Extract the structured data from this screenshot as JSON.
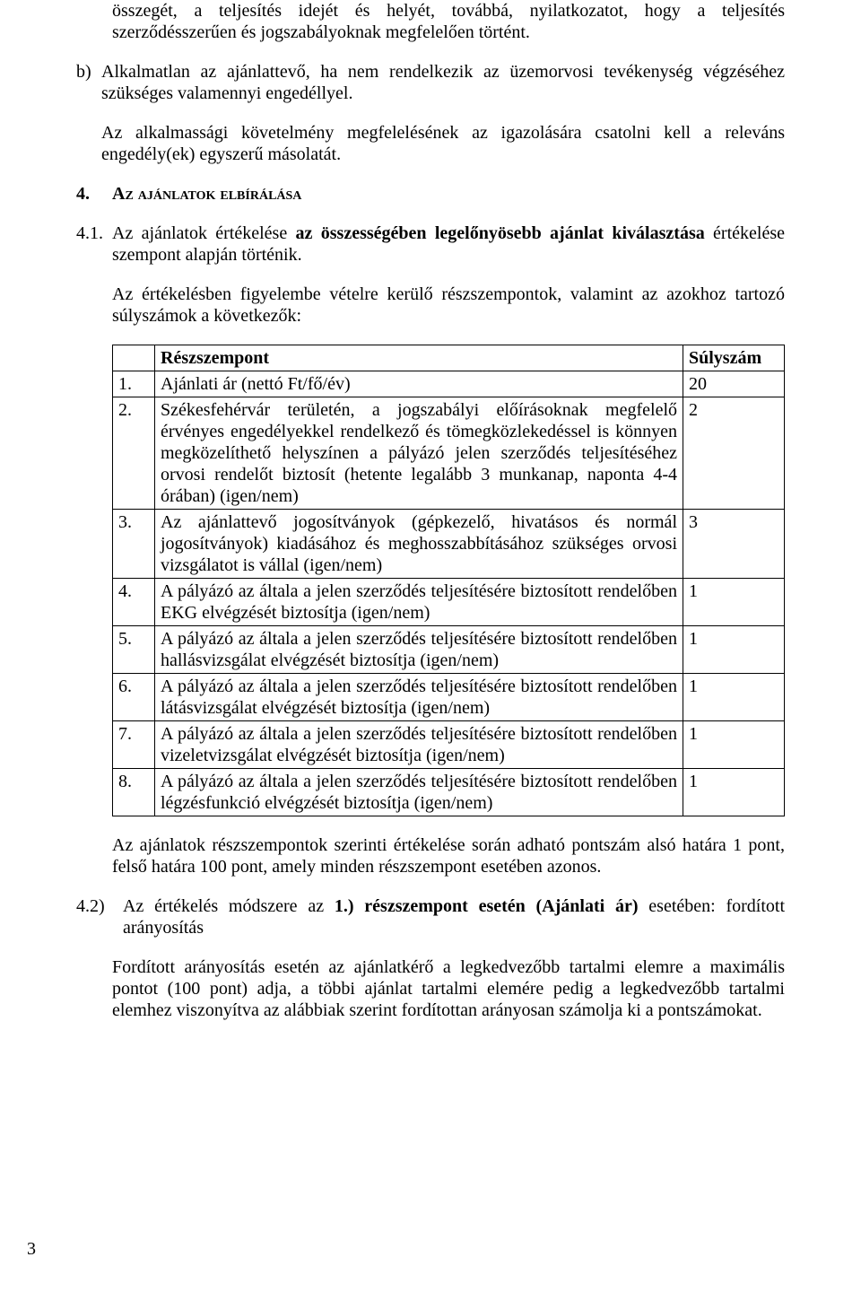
{
  "para_top": "összegét, a teljesítés idejét és helyét, továbbá, nyilatkozatot, hogy a teljesítés szerződésszerűen és jogszabályoknak megfelelően történt.",
  "item_b_marker": "b)",
  "item_b_text1": "Alkalmatlan az ajánlattevő, ha nem rendelkezik az üzemorvosi tevékenység végzéséhez szükséges valamennyi engedéllyel.",
  "item_b_text2": "Az alkalmassági követelmény megfelelésének az igazolására csatolni kell a releváns engedély(ek) egyszerű másolatát.",
  "section4_num": "4.",
  "section4_title": "Az ajánlatok elbírálása",
  "sec41_num": "4.1.",
  "sec41_pre": "Az ajánlatok értékelése ",
  "sec41_bold": "az összességében legelőnyösebb ajánlat kiválasztása",
  "sec41_post": " értékelése szempont alapján történik.",
  "sec41_para2": "Az értékelésben figyelembe vételre kerülő részszempontok, valamint az azokhoz tartozó súlyszámok a következők:",
  "table": {
    "header_criterion": "Részszempont",
    "header_weight": "Súlyszám",
    "rows": [
      {
        "n": "1.",
        "desc": "Ajánlati ár (nettó Ft/fő/év)",
        "w": "20"
      },
      {
        "n": "2.",
        "desc": "Székesfehérvár területén, a jogszabályi előírásoknak megfelelő érvényes engedélyekkel rendelkező és tömegközlekedéssel is könnyen megközelíthető helyszínen a pályázó jelen szerződés teljesítéséhez orvosi rendelőt biztosít (hetente legalább 3 munkanap, naponta 4-4 órában) (igen/nem)",
        "w": "2"
      },
      {
        "n": "3.",
        "desc": "Az ajánlattevő jogosítványok (gépkezelő, hivatásos és normál jogosítványok) kiadásához és meghosszabbításához szükséges orvosi vizsgálatot is vállal (igen/nem)",
        "w": "3"
      },
      {
        "n": "4.",
        "desc": "A pályázó az általa a jelen szerződés teljesítésére biztosított rendelőben EKG elvégzését biztosítja (igen/nem)",
        "w": "1"
      },
      {
        "n": "5.",
        "desc": "A pályázó az általa a jelen szerződés teljesítésére biztosított rendelőben hallásvizsgálat elvégzését biztosítja (igen/nem)",
        "w": "1"
      },
      {
        "n": "6.",
        "desc": "A pályázó az általa a jelen szerződés teljesítésére biztosított rendelőben látásvizsgálat elvégzését biztosítja (igen/nem)",
        "w": "1"
      },
      {
        "n": "7.",
        "desc": "A pályázó az általa a jelen szerződés teljesítésére biztosított rendelőben vizeletvizsgálat elvégzését biztosítja (igen/nem)",
        "w": "1"
      },
      {
        "n": "8.",
        "desc": "A pályázó az általa a jelen szerződés teljesítésére biztosított rendelőben légzésfunkció elvégzését biztosítja (igen/nem)",
        "w": "1"
      }
    ]
  },
  "after_table_para": "Az ajánlatok részszempontok szerinti értékelése során adható pontszám alsó határa 1 pont, felső határa 100 pont, amely minden részszempont esetében azonos.",
  "sec42_num": "4.2)",
  "sec42_pre": "Az értékelés módszere az ",
  "sec42_bold": "1.) részszempont esetén (Ajánlati ár)",
  "sec42_post": " esetében: fordított arányosítás",
  "sec42_para2": "Fordított arányosítás esetén az ajánlatkérő a legkedvezőbb tartalmi elemre a maximális pontot (100 pont) adja, a többi ajánlat tartalmi elemére pedig a legkedvezőbb tartalmi elemhez viszonyítva az alábbiak szerint fordítottan arányosan számolja ki a pontszámokat.",
  "page_number": "3"
}
